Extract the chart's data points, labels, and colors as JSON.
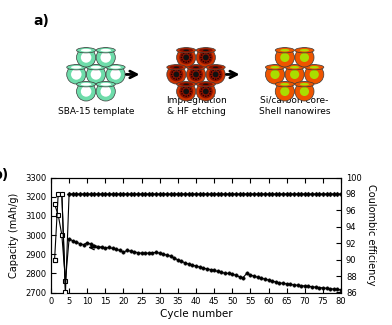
{
  "title_a": "a)",
  "title_b": "b)",
  "xlabel": "Cycle number",
  "ylabel_left": "Capacity (mAh/g)",
  "ylabel_right": "Coulombic efficiency",
  "ylim_left": [
    2700,
    3300
  ],
  "ylim_right": [
    86,
    100
  ],
  "yticks_left": [
    2700,
    2800,
    2900,
    3000,
    3100,
    3200,
    3300
  ],
  "yticks_right": [
    86,
    88,
    90,
    92,
    94,
    96,
    98,
    100
  ],
  "xlim": [
    0,
    80
  ],
  "xticks": [
    0,
    5,
    10,
    15,
    20,
    25,
    30,
    35,
    40,
    45,
    50,
    55,
    60,
    65,
    70,
    75,
    80
  ],
  "capacity_cycles": [
    1,
    2,
    3,
    4,
    5,
    6,
    7,
    8,
    9,
    10,
    11,
    12,
    13,
    14,
    15,
    16,
    17,
    18,
    19,
    20,
    21,
    22,
    23,
    24,
    25,
    26,
    27,
    28,
    29,
    30,
    31,
    32,
    33,
    34,
    35,
    36,
    37,
    38,
    39,
    40,
    41,
    42,
    43,
    44,
    45,
    46,
    47,
    48,
    49,
    50,
    51,
    52,
    53,
    54,
    55,
    56,
    57,
    58,
    59,
    60,
    61,
    62,
    63,
    64,
    65,
    66,
    67,
    68,
    69,
    70,
    71,
    72,
    73,
    74,
    75,
    76,
    77,
    78,
    79,
    80
  ],
  "capacity_values": [
    3160,
    3105,
    3000,
    2760,
    2980,
    2970,
    2962,
    2955,
    2950,
    2960,
    2952,
    2945,
    2940,
    2936,
    2932,
    2935,
    2930,
    2925,
    2920,
    2910,
    2920,
    2916,
    2912,
    2908,
    2905,
    2905,
    2906,
    2907,
    2910,
    2905,
    2900,
    2895,
    2890,
    2880,
    2870,
    2862,
    2855,
    2848,
    2843,
    2838,
    2833,
    2828,
    2823,
    2820,
    2815,
    2810,
    2806,
    2800,
    2800,
    2796,
    2790,
    2782,
    2778,
    2800,
    2792,
    2785,
    2780,
    2775,
    2770,
    2765,
    2760,
    2755,
    2750,
    2748,
    2745,
    2742,
    2740,
    2738,
    2736,
    2734,
    2732,
    2730,
    2728,
    2726,
    2724,
    2722,
    2720,
    2718,
    2716,
    2714
  ],
  "coulombic_cycles": [
    1,
    2,
    3,
    4,
    5,
    6,
    7,
    8,
    9,
    10,
    11,
    12,
    13,
    14,
    15,
    16,
    17,
    18,
    19,
    20,
    21,
    22,
    23,
    24,
    25,
    26,
    27,
    28,
    29,
    30,
    31,
    32,
    33,
    34,
    35,
    36,
    37,
    38,
    39,
    40,
    41,
    42,
    43,
    44,
    45,
    46,
    47,
    48,
    49,
    50,
    51,
    52,
    53,
    54,
    55,
    56,
    57,
    58,
    59,
    60,
    61,
    62,
    63,
    64,
    65,
    66,
    67,
    68,
    69,
    70,
    71,
    72,
    73,
    74,
    75,
    76,
    77,
    78,
    79,
    80
  ],
  "coulombic_values": [
    90,
    98,
    98,
    86,
    98,
    98,
    98,
    98,
    98,
    98,
    98,
    98,
    98,
    98,
    98,
    98,
    98,
    98,
    98,
    98,
    98,
    98,
    98,
    98,
    98,
    98,
    98,
    98,
    98,
    98,
    98,
    98,
    98,
    98,
    98,
    98,
    98,
    98,
    98,
    98,
    98,
    98,
    98,
    98,
    98,
    98,
    98,
    98,
    98,
    98,
    98,
    98,
    98,
    98,
    98,
    98,
    98,
    98,
    98,
    98,
    98,
    98,
    98,
    98,
    98,
    98,
    98,
    98,
    98,
    98,
    98,
    98,
    98,
    98,
    98,
    98,
    98,
    98,
    98,
    98
  ],
  "background_color": "#ffffff",
  "line_color": "#000000",
  "marker_size": 2.5,
  "sba15_color": "#6EDCAA",
  "sba15_hole": "#ffffff",
  "sba15_shadow": "#5BC090",
  "imp_outer": "#CC3300",
  "imp_inner": "#881100",
  "imp_core": "#111111",
  "cs_shell": "#EE5500",
  "cs_core": "#AADD00",
  "label_fontsize": 6.5,
  "panel_label_fontsize": 10
}
